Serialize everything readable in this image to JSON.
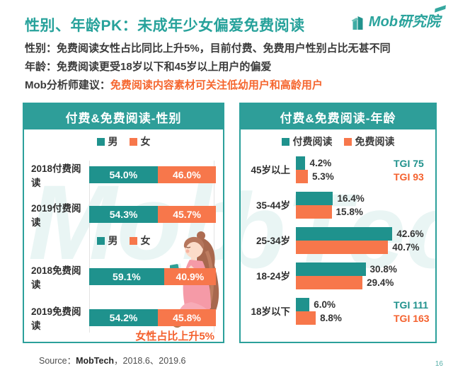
{
  "page": {
    "page_number": "16"
  },
  "header": {
    "title": "性别、年龄PK：未成年少女偏爱免费阅读",
    "logo_text": "Mob研究院"
  },
  "summary": {
    "line1": "性别：免费阅读女性占比同比上升5%，目前付费、免费用户性别占比无甚不同",
    "line2": "年龄：免费阅读更受18岁以下和45岁以上用户的偏爱",
    "line3_prefix": "Mob分析师建议：",
    "line3_highlight": "免费阅读内容素材可关注低幼用户和高龄用户"
  },
  "colors": {
    "teal_bar": "#1F928D",
    "teal_header": "#2E9E99",
    "teal_title": "#27A29B",
    "orange_bar": "#F7774B",
    "orange_text": "#F4612E",
    "dark_text": "#3B3B3B",
    "panel_border": "#2CA09B"
  },
  "watermark": {
    "left": "Mob",
    "right": "bTech",
    "full": "MobTech"
  },
  "gender_chart": {
    "title": "付费&免费阅读-性别",
    "legend": {
      "male": "男",
      "female": "女"
    },
    "rows": [
      {
        "label": "2018付费阅读",
        "male": 54.0,
        "female": 46.0,
        "male_label": "54.0%",
        "female_label": "46.0%"
      },
      {
        "label": "2019付费阅读",
        "male": 54.3,
        "female": 45.7,
        "male_label": "54.3%",
        "female_label": "45.7%"
      },
      {
        "label": "2018免费阅读",
        "male": 59.1,
        "female": 40.9,
        "male_label": "59.1%",
        "female_label": "40.9%"
      },
      {
        "label": "2019免费阅读",
        "male": 54.2,
        "female": 45.8,
        "male_label": "54.2%",
        "female_label": "45.8%"
      }
    ],
    "note": "女性占比上升5%"
  },
  "age_chart": {
    "title": "付费&免费阅读-年龄",
    "legend": {
      "paid": "付费阅读",
      "free": "免费阅读"
    },
    "rows": [
      {
        "label": "45岁以上",
        "paid": 4.2,
        "free": 5.3,
        "paid_label": "4.2%",
        "free_label": "5.3%",
        "paid_tgi": "TGI 75",
        "free_tgi": "TGI 93"
      },
      {
        "label": "35-44岁",
        "paid": 16.4,
        "free": 15.8,
        "paid_label": "16.4%",
        "free_label": "15.8%"
      },
      {
        "label": "25-34岁",
        "paid": 42.6,
        "free": 40.7,
        "paid_label": "42.6%",
        "free_label": "40.7%"
      },
      {
        "label": "18-24岁",
        "paid": 30.8,
        "free": 29.4,
        "paid_label": "30.8%",
        "free_label": "29.4%"
      },
      {
        "label": "18岁以下",
        "paid": 6.0,
        "free": 8.8,
        "paid_label": "6.0%",
        "free_label": "8.8%",
        "paid_tgi": "TGI 111",
        "free_tgi": "TGI 163"
      }
    ]
  },
  "footer": {
    "source_prefix": "Source：",
    "source_bold": "MobTech",
    "source_suffix": "，2018.6、2019.6"
  },
  "chart_data": [
    {
      "type": "bar",
      "subtype": "horizontal-stacked",
      "title": "付费&免费阅读-性别",
      "categories": [
        "2018付费阅读",
        "2019付费阅读",
        "2018免费阅读",
        "2019免费阅读"
      ],
      "series": [
        {
          "name": "男",
          "values": [
            54.0,
            54.3,
            59.1,
            54.2
          ]
        },
        {
          "name": "女",
          "values": [
            46.0,
            45.7,
            40.9,
            45.8
          ]
        }
      ],
      "unit": "%",
      "xlim": [
        0,
        100
      ],
      "legend_position": "top",
      "annotation": "女性占比上升5%"
    },
    {
      "type": "bar",
      "subtype": "horizontal-grouped",
      "title": "付费&免费阅读-年龄",
      "categories": [
        "45岁以上",
        "35-44岁",
        "25-34岁",
        "18-24岁",
        "18岁以下"
      ],
      "series": [
        {
          "name": "付费阅读",
          "values": [
            4.2,
            16.4,
            42.6,
            30.8,
            6.0
          ]
        },
        {
          "name": "免费阅读",
          "values": [
            5.3,
            15.8,
            40.7,
            29.4,
            8.8
          ]
        }
      ],
      "unit": "%",
      "legend_position": "top",
      "annotations": [
        {
          "category": "45岁以上",
          "付费阅读": "TGI 75",
          "免费阅读": "TGI 93"
        },
        {
          "category": "18岁以下",
          "付费阅读": "TGI 111",
          "免费阅读": "TGI 163"
        }
      ]
    }
  ]
}
